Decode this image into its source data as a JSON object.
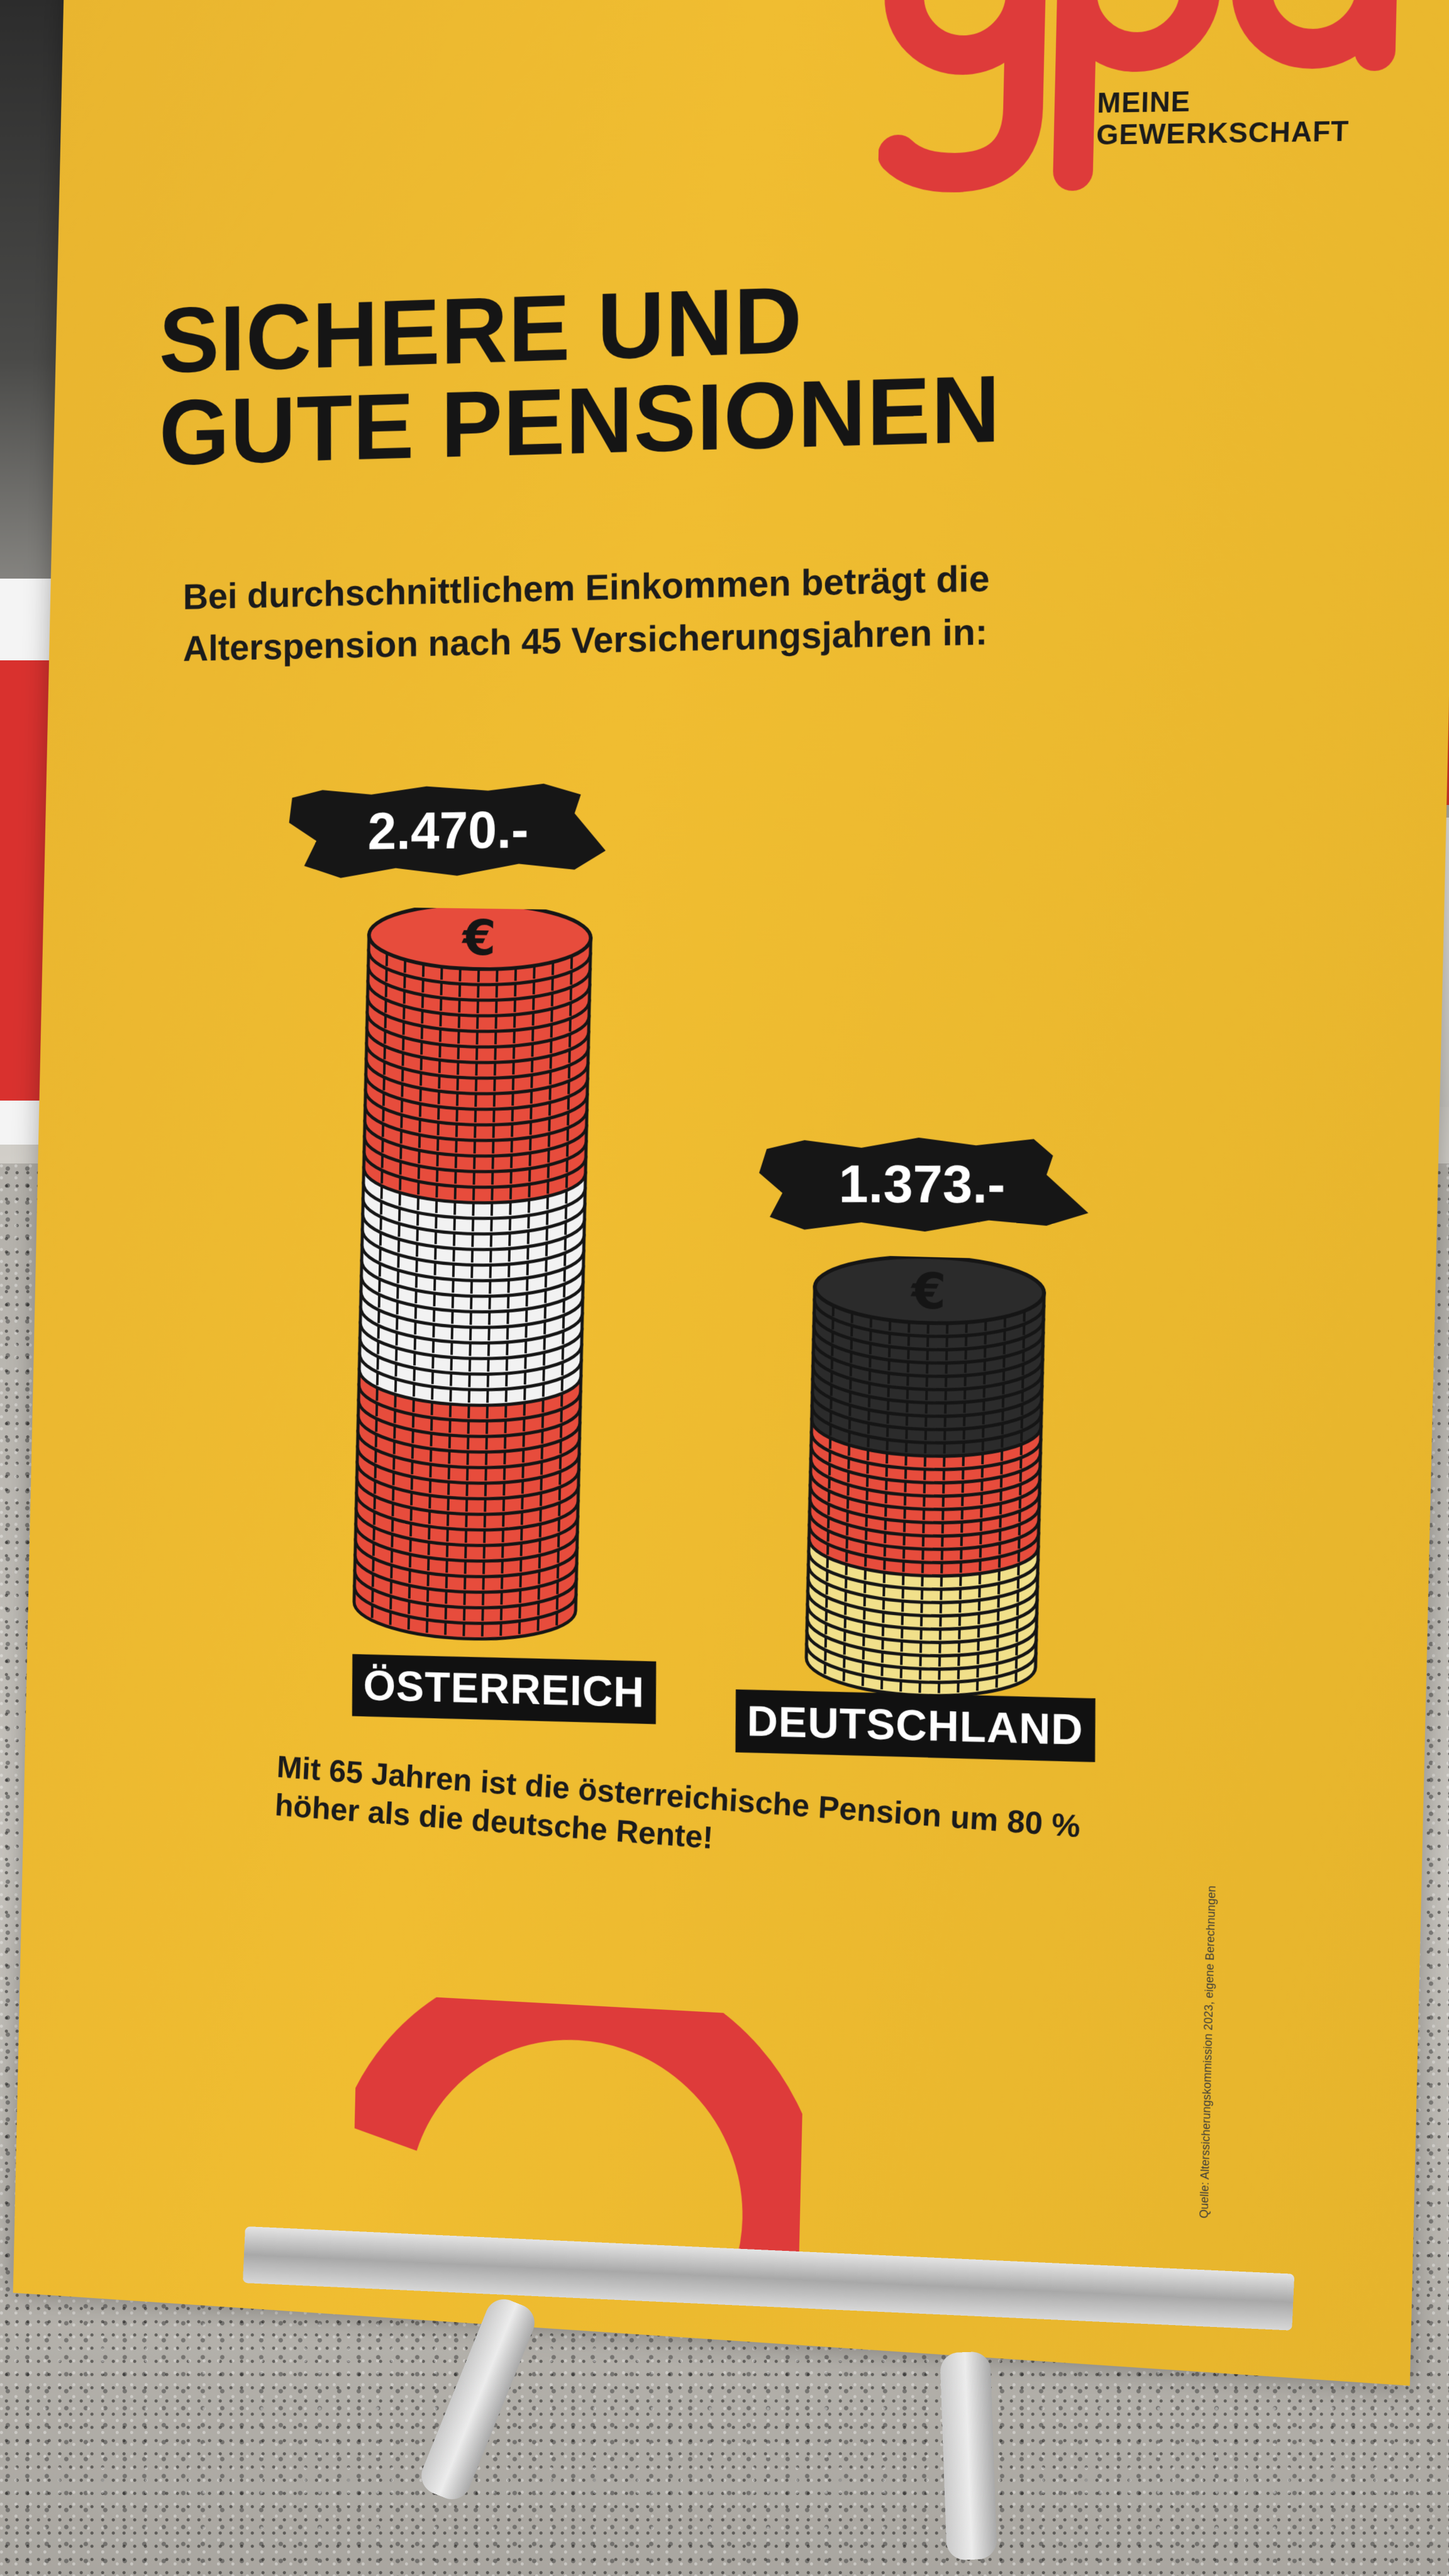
{
  "logo": {
    "mark_text": "gpa",
    "tagline_line1": "MEINE",
    "tagline_line2": "GEWERKSCHAFT"
  },
  "headline": {
    "line1": "SICHERE UND",
    "line2": "GUTE PENSIONEN"
  },
  "intro": {
    "line1": "Bei durchschnittlichem Einkommen beträgt die",
    "line2": "Alterspension nach 45 Versicherungsjahren in:"
  },
  "comparison": {
    "austria": {
      "amount": "2.470.-",
      "label": "ÖSTERREICH",
      "value": 2470
    },
    "germany": {
      "amount": "1.373.-",
      "label": "DEUTSCHLAND",
      "value": 1373
    }
  },
  "footnote": {
    "line1": "Mit 65 Jahren ist die österreichische Pension um 80 %",
    "line2": "höher als die deutsche Rente!"
  },
  "source": "Quelle: Alterssicherungskommission 2023, eigene Berechnungen",
  "colors": {
    "banner_yellow": "#f0bd31",
    "brand_red": "#de3b3a",
    "text_dark": "#151515",
    "coin_red": "#e74c3c",
    "coin_white": "#f2f2f2",
    "coin_black": "#2b2b2b",
    "coin_gold": "#f1e08a"
  },
  "icons": {
    "coin_symbol": "euro-icon"
  }
}
